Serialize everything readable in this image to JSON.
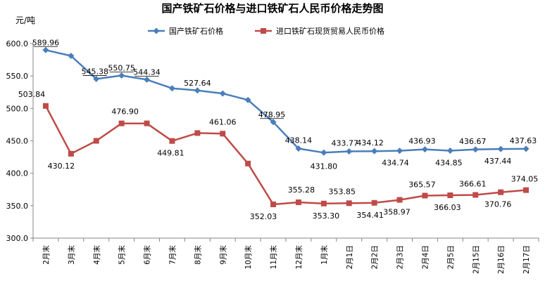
{
  "chart_data": {
    "type": "line",
    "title": "国产铁矿石价格与进口铁矿石人民币价格走势图",
    "ylabel": "元/吨",
    "ylim": [
      300,
      600
    ],
    "yticks": [
      "600.0",
      "550.0",
      "500.0",
      "450.0",
      "400.0",
      "350.0",
      "300.0"
    ],
    "grid": false,
    "legend_position": "top-right",
    "categories": [
      "2月末",
      "3月末",
      "4月末",
      "5月末",
      "6月末",
      "7月末",
      "8月末",
      "9月末",
      "10月末",
      "11月末",
      "12月末",
      "1月末",
      "2月1日",
      "2月2日",
      "2月3日",
      "2月4日",
      "2月5日",
      "2月15日",
      "2月16日",
      "2月17日"
    ],
    "series": [
      {
        "name": "国产铁矿石价格",
        "color": "#4a7ebb",
        "marker": "diamond",
        "values": [
          589.96,
          581,
          545.38,
          550.75,
          544.34,
          531,
          527.64,
          523,
          513,
          478.95,
          438.14,
          431.8,
          433.77,
          434.12,
          434.74,
          436.93,
          434.85,
          436.67,
          437.44,
          437.63
        ],
        "labels": [
          "589.96",
          "",
          "545.38",
          "550.75",
          "544.34",
          "",
          "527.64",
          "",
          "",
          "478.95",
          "438.14",
          "431.80",
          "433.77",
          "434.12",
          "434.74",
          "436.93",
          "434.85",
          "436.67",
          "437.44",
          "437.63"
        ]
      },
      {
        "name": "进口铁矿石现货贸易人民币价格",
        "color": "#be4b48",
        "marker": "square",
        "values": [
          503.84,
          430.12,
          450,
          476.9,
          476.9,
          449.81,
          462,
          461.06,
          415,
          352.03,
          355.28,
          353.3,
          353.85,
          354.41,
          358.97,
          365.57,
          366.03,
          366.61,
          370.76,
          374.05
        ],
        "labels": [
          "503.84",
          "430.12",
          "",
          "476.90",
          "",
          "449.81",
          "",
          "461.06",
          "",
          "352.03",
          "355.28",
          "353.30",
          "353.85",
          "354.41",
          "358.97",
          "365.57",
          "366.03",
          "366.61",
          "370.76",
          "374.05"
        ]
      }
    ]
  }
}
